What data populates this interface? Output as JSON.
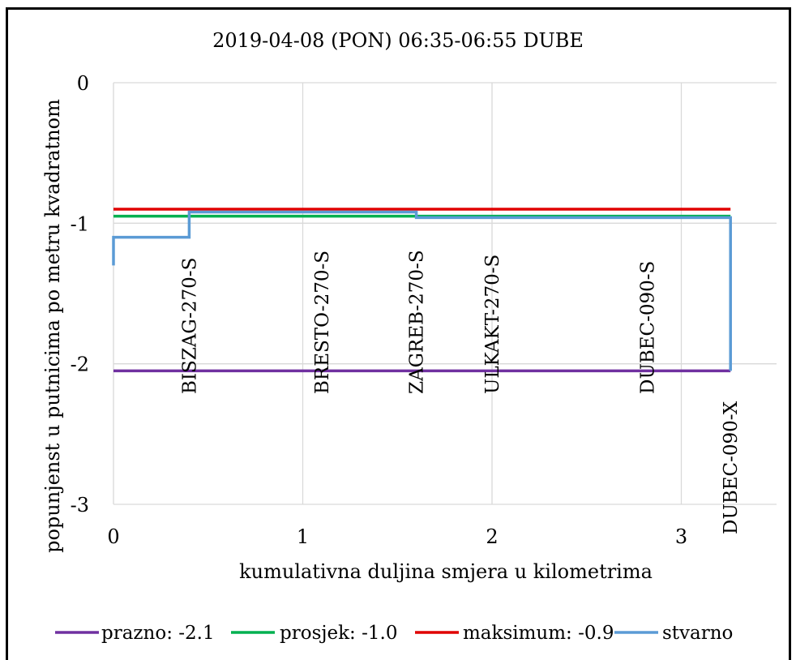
{
  "chart_data": {
    "type": "line",
    "title": "2019-04-08 (PON) 06:35-06:55 DUBE",
    "xlabel": "kumulativna duljina smjera u kilometrima",
    "ylabel": "popunjenst u putnicima po metru kvadratnom",
    "xlim": [
      0,
      3.5
    ],
    "ylim": [
      -3,
      0
    ],
    "x_ticks": [
      0,
      1,
      2,
      3
    ],
    "y_ticks": [
      0,
      -1,
      -2,
      -3
    ],
    "x_tick_labels": [
      "0",
      "1",
      "2",
      "3"
    ],
    "y_tick_labels": [
      "0",
      "-1",
      "-2",
      "-3"
    ],
    "grid": true,
    "legend_position": "bottom",
    "series": [
      {
        "name": "prazno: -2.1",
        "color": "#7030A0",
        "x": [
          0,
          3.26
        ],
        "y": [
          -2.05,
          -2.05
        ]
      },
      {
        "name": "prosjek: -1.0",
        "color": "#00B050",
        "x": [
          0,
          0.4,
          0.4,
          3.26
        ],
        "y": [
          -0.95,
          -0.95,
          -0.95,
          -0.95
        ]
      },
      {
        "name": "maksimum: -0.9",
        "color": "#E00000",
        "x": [
          0,
          0.4,
          1.6,
          3.26
        ],
        "y": [
          -0.9,
          -0.9,
          -0.9,
          -0.9
        ]
      },
      {
        "name": "stvarno",
        "color": "#5B9BD5",
        "x": [
          0,
          0,
          0.4,
          0.4,
          1.6,
          1.6,
          3.26,
          3.26
        ],
        "y": [
          -1.3,
          -1.1,
          -1.1,
          -0.92,
          -0.92,
          -0.96,
          -0.96,
          -2.05
        ]
      }
    ],
    "stations": [
      {
        "label": "BISZAG-270-S",
        "x": 0.4
      },
      {
        "label": "BRESTO-270-S",
        "x": 1.1
      },
      {
        "label": "ZAGREB-270-S",
        "x": 1.6
      },
      {
        "label": "ULKAKT-270-S",
        "x": 2.0
      },
      {
        "label": "DUBEC-090-S",
        "x": 2.82
      },
      {
        "label": "DUBEC-090-X",
        "x": 3.26
      }
    ]
  }
}
